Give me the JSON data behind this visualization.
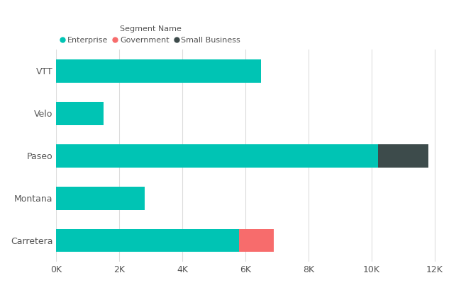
{
  "categories": [
    "Carretera",
    "Montana",
    "Paseo",
    "Velo",
    "VTT"
  ],
  "enterprise": [
    5800,
    2800,
    10200,
    1500,
    6500
  ],
  "government": [
    1100,
    0,
    0,
    0,
    0
  ],
  "small_business": [
    0,
    0,
    1600,
    0,
    0
  ],
  "enterprise_color": "#00C4B4",
  "government_color": "#F76C6C",
  "small_business_color": "#3D4B4B",
  "bg_color": "#FFFFFF",
  "grid_color": "#DDDDDD",
  "text_color": "#555555",
  "legend_title": "Segment Name",
  "legend_labels": [
    "Enterprise",
    "Government",
    "Small Business"
  ],
  "xlabel_ticks": [
    0,
    2000,
    4000,
    6000,
    8000,
    10000,
    12000
  ],
  "xlabel_labels": [
    "0K",
    "2K",
    "4K",
    "6K",
    "8K",
    "10K",
    "12K"
  ],
  "xlim": [
    0,
    12500
  ]
}
